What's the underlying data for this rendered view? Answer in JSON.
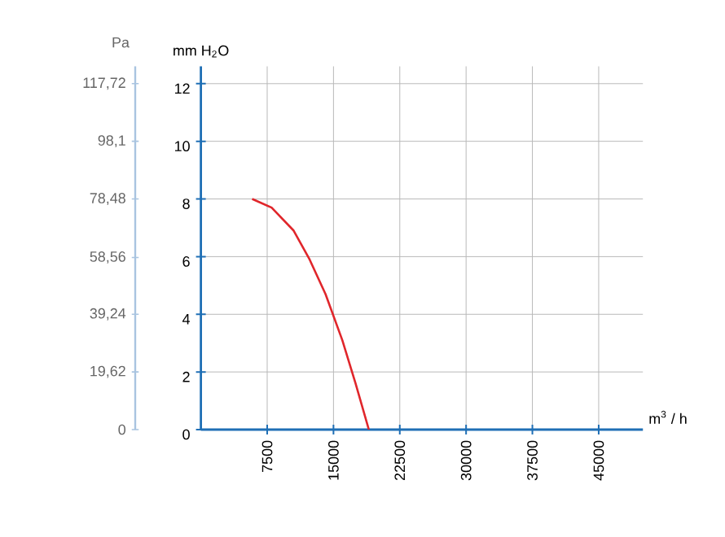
{
  "chart_data": {
    "type": "line",
    "xlabel": "m$^{3}$ / h",
    "ylabel": "mm H$_{2}$O",
    "y2label": "Pa",
    "x": [
      5800,
      8000,
      10500,
      12300,
      14100,
      16000,
      17500,
      19000
    ],
    "series": [
      {
        "color": "#e0262b",
        "values": [
          8,
          7.7,
          6.9,
          5.9,
          4.7,
          3.1,
          1.6,
          0
        ]
      }
    ],
    "xlim": [
      0,
      50000
    ],
    "xticks": [
      7500,
      15000,
      22500,
      30000,
      37500,
      45000
    ],
    "ylim": [
      0,
      12.6
    ],
    "yticks": [
      0,
      2,
      4,
      6,
      8,
      10,
      12
    ],
    "y2lim": [
      0,
      123.6
    ],
    "y2ticks": [
      {
        "value": 0,
        "label": "0"
      },
      {
        "value": 19.62,
        "label": "19,62"
      },
      {
        "value": 39.24,
        "label": "39,24"
      },
      {
        "value": 58.56,
        "label": "58,56"
      },
      {
        "value": 78.48,
        "label": "78,48"
      },
      {
        "value": 98.1,
        "label": "98,1"
      },
      {
        "value": 117.72,
        "label": "117,72"
      }
    ],
    "grid": true,
    "marker": "none",
    "line_style": "solid"
  }
}
